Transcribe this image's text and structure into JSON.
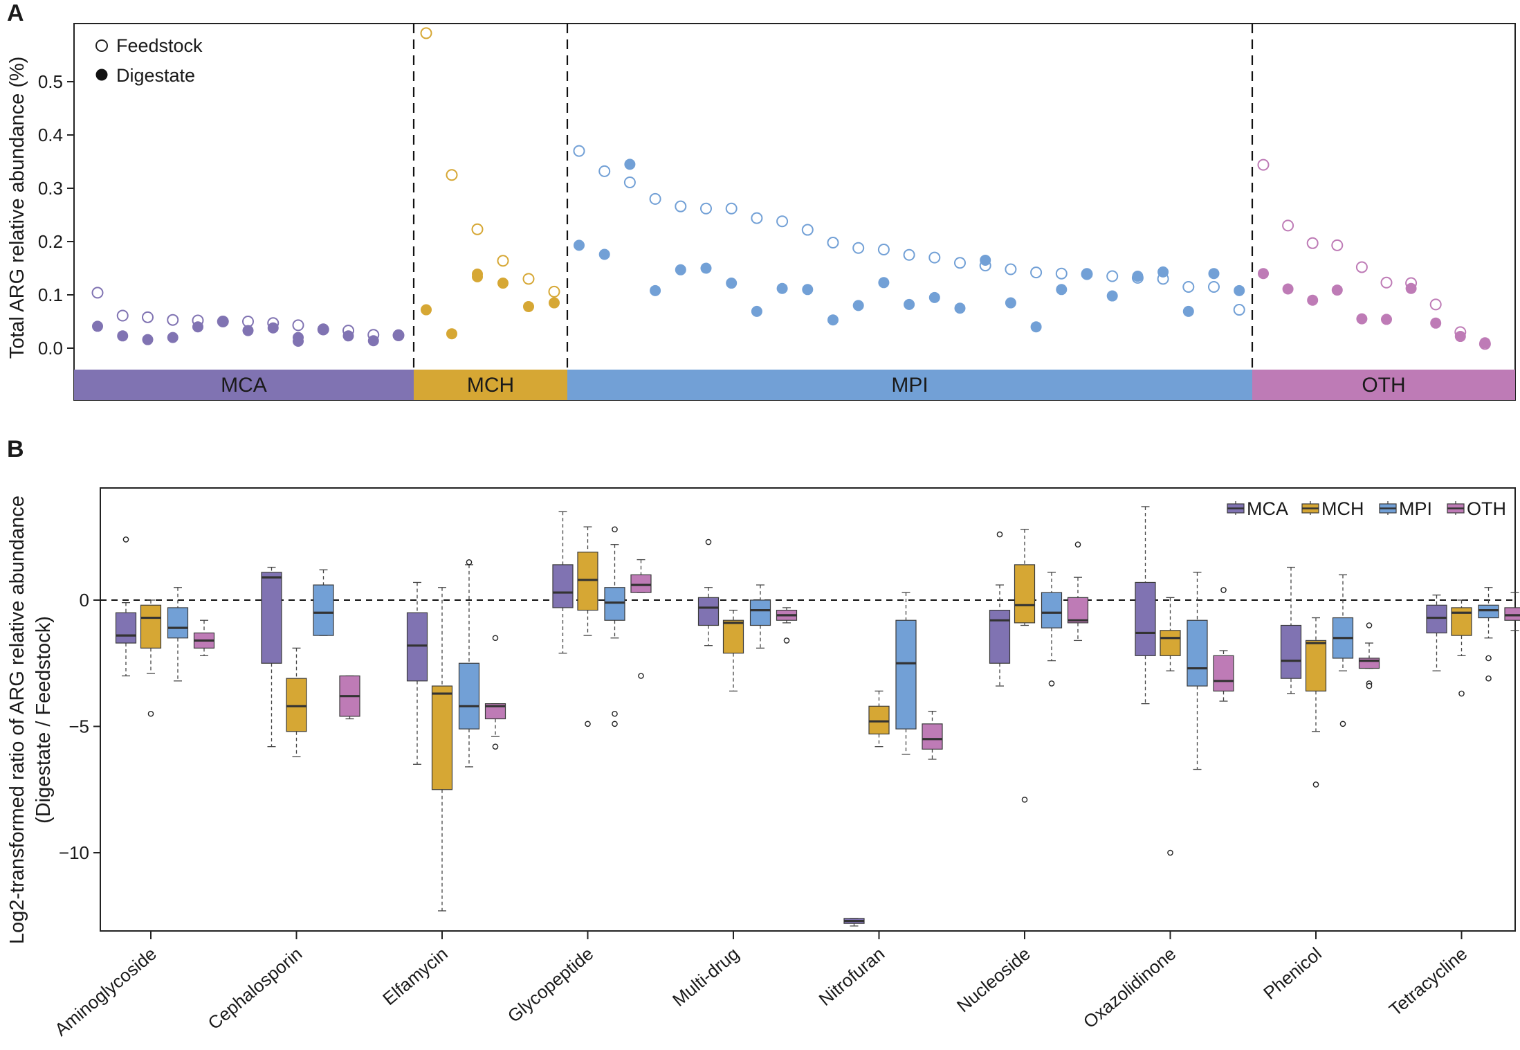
{
  "colors": {
    "MCA": "#8073b2",
    "MCH": "#d6a734",
    "MPI": "#72a0d6",
    "OTH": "#be7bb6",
    "median": "#333333",
    "axis": "#222222"
  },
  "chart_data": [
    {
      "panel": "A",
      "type": "scatter",
      "ylabel": "Total ARG relative abundance (%)",
      "ylim": [
        -0.04,
        0.6
      ],
      "yticks": [
        0.0,
        0.1,
        0.2,
        0.3,
        0.4,
        0.5
      ],
      "ytick_labels": [
        "0.0",
        "0.1",
        "0.2",
        "0.3",
        "0.4",
        "0.5"
      ],
      "legend": {
        "feedstock": "Feedstock",
        "digestate": "Digestate",
        "position": "top-left"
      },
      "groups": [
        {
          "name": "MCA",
          "label": "MCA",
          "feedstock": [
            0.104,
            0.061,
            0.058,
            0.053,
            0.052,
            0.05,
            0.05,
            0.047,
            0.043,
            0.035,
            0.033,
            0.025,
            0.024
          ],
          "digestate": [
            0.041,
            0.023,
            0.016,
            0.02,
            0.04,
            0.05,
            0.033,
            0.038,
            0.013,
            0.036,
            0.023,
            0.014,
            0.025
          ],
          "digestate_extra": [
            {
              "index": 8,
              "value": 0.02
            }
          ]
        },
        {
          "name": "MCH",
          "label": "MCH",
          "feedstock": [
            0.591,
            0.325,
            0.223,
            0.164,
            0.13,
            0.106
          ],
          "digestate": [
            0.072,
            0.027,
            0.139,
            0.122,
            0.078,
            0.085
          ],
          "digestate_extra": [
            {
              "index": 2,
              "value": 0.134
            }
          ]
        },
        {
          "name": "MPI",
          "label": "MPI",
          "feedstock": [
            0.37,
            0.332,
            0.311,
            0.28,
            0.266,
            0.262,
            0.262,
            0.244,
            0.238,
            0.222,
            0.198,
            0.188,
            0.185,
            0.175,
            0.17,
            0.16,
            0.155,
            0.148,
            0.142,
            0.14,
            0.139,
            0.135,
            0.132,
            0.13,
            0.115,
            0.115,
            0.072
          ],
          "digestate": [
            0.193,
            0.176,
            0.108,
            0.147,
            0.15,
            0.122,
            0.069,
            0.112,
            0.11,
            0.053,
            0.08,
            0.123,
            0.082,
            0.095,
            0.075,
            0.165,
            0.085,
            0.04,
            0.11,
            0.14,
            0.098,
            0.135,
            0.143,
            0.069,
            0.14,
            0.108
          ],
          "digestate_positions": [
            0,
            1,
            3,
            4,
            5,
            6,
            7,
            8,
            9,
            10,
            11,
            12,
            13,
            14,
            15,
            16,
            17,
            18,
            19,
            20,
            21,
            22,
            23,
            24,
            25,
            26
          ],
          "digestate_extra": [
            {
              "index": 2,
              "value": 0.345
            }
          ]
        },
        {
          "name": "OTH",
          "label": "OTH",
          "feedstock": [
            0.344,
            0.23,
            0.197,
            0.193,
            0.152,
            0.123,
            0.122,
            0.082,
            0.03,
            0.008
          ],
          "digestate": [
            0.14,
            0.111,
            0.09,
            0.109,
            0.055,
            0.054,
            0.112,
            0.047,
            0.022,
            0.01
          ]
        }
      ]
    },
    {
      "panel": "B",
      "type": "box",
      "ylabel_line1": "Log2-transformed ratio of ARG relative abundance",
      "ylabel_line2": "(Digestate / Feedstock)",
      "ylim": [
        -13,
        4.5
      ],
      "yticks": [
        0,
        -5,
        -10
      ],
      "ytick_labels": [
        "0",
        "−5",
        "−10"
      ],
      "reference_line": 0,
      "series": [
        "MCA",
        "MCH",
        "MPI",
        "OTH"
      ],
      "legend_position": "top-right",
      "categories": [
        "Aminoglycoside",
        "Cephalosporin",
        "Elfamycin",
        "Glycopeptide",
        "Multi-drug",
        "Nitrofuran",
        "Nucleoside",
        "Oxazolidinone",
        "Phenicol",
        "Tetracycline"
      ],
      "boxes": [
        [
          {
            "series": "MCA",
            "wl": -3.0,
            "q1": -1.7,
            "med": -1.4,
            "q3": -0.5,
            "wh": -0.1,
            "out": [
              2.4
            ]
          },
          {
            "series": "MCH",
            "wl": -2.9,
            "q1": -1.9,
            "med": -0.7,
            "q3": -0.2,
            "wh": 0.0,
            "out": [
              -4.5
            ]
          },
          {
            "series": "MPI",
            "wl": -3.2,
            "q1": -1.5,
            "med": -1.1,
            "q3": -0.3,
            "wh": 0.5,
            "out": []
          },
          {
            "series": "OTH",
            "wl": -2.2,
            "q1": -1.9,
            "med": -1.6,
            "q3": -1.3,
            "wh": -0.8,
            "out": []
          }
        ],
        [
          {
            "series": "MCA",
            "wl": -5.8,
            "q1": -2.5,
            "med": 0.9,
            "q3": 1.1,
            "wh": 1.3,
            "out": []
          },
          {
            "series": "MCH",
            "wl": -6.2,
            "q1": -5.2,
            "med": -4.2,
            "q3": -3.1,
            "wh": -1.9,
            "out": []
          },
          {
            "series": "MPI",
            "wl": -1.4,
            "q1": -1.4,
            "med": -0.5,
            "q3": 0.6,
            "wh": 1.2,
            "out": []
          },
          {
            "series": "OTH",
            "wl": -4.7,
            "q1": -4.6,
            "med": -3.8,
            "q3": -3.0,
            "wh": -3.0,
            "out": []
          }
        ],
        [
          {
            "series": "MCA",
            "wl": -6.5,
            "q1": -3.2,
            "med": -1.8,
            "q3": -0.5,
            "wh": 0.7,
            "out": []
          },
          {
            "series": "MCH",
            "wl": -12.3,
            "q1": -7.5,
            "med": -3.7,
            "q3": -3.4,
            "wh": 0.5,
            "out": []
          },
          {
            "series": "MPI",
            "wl": -6.6,
            "q1": -5.1,
            "med": -4.2,
            "q3": -2.5,
            "wh": 1.4,
            "out": [
              1.5
            ]
          },
          {
            "series": "OTH",
            "wl": -5.4,
            "q1": -4.7,
            "med": -4.2,
            "q3": -4.1,
            "wh": -4.1,
            "out": [
              -1.5,
              -5.8
            ]
          }
        ],
        [
          {
            "series": "MCA",
            "wl": -2.1,
            "q1": -0.3,
            "med": 0.3,
            "q3": 1.4,
            "wh": 3.5,
            "out": []
          },
          {
            "series": "MCH",
            "wl": -1.4,
            "q1": -0.4,
            "med": 0.8,
            "q3": 1.9,
            "wh": 2.9,
            "out": [
              -4.9
            ]
          },
          {
            "series": "MPI",
            "wl": -1.5,
            "q1": -0.8,
            "med": -0.1,
            "q3": 0.5,
            "wh": 2.2,
            "out": [
              2.8,
              -4.5,
              -4.9
            ]
          },
          {
            "series": "OTH",
            "wl": 0.3,
            "q1": 0.3,
            "med": 0.6,
            "q3": 1.0,
            "wh": 1.6,
            "out": [
              -3.0
            ]
          }
        ],
        [
          {
            "series": "MCA",
            "wl": -1.8,
            "q1": -1.0,
            "med": -0.3,
            "q3": 0.1,
            "wh": 0.5,
            "out": [
              2.3
            ]
          },
          {
            "series": "MCH",
            "wl": -3.6,
            "q1": -2.1,
            "med": -0.9,
            "q3": -0.8,
            "wh": -0.4,
            "out": []
          },
          {
            "series": "MPI",
            "wl": -1.9,
            "q1": -1.0,
            "med": -0.4,
            "q3": 0.0,
            "wh": 0.6,
            "out": []
          },
          {
            "series": "OTH",
            "wl": -0.9,
            "q1": -0.8,
            "med": -0.6,
            "q3": -0.4,
            "wh": -0.3,
            "out": [
              -1.6
            ]
          }
        ],
        [
          {
            "series": "MCA",
            "wl": -12.9,
            "q1": -12.8,
            "med": -12.7,
            "q3": -12.6,
            "wh": -12.6,
            "out": []
          },
          {
            "series": "MCH",
            "wl": -5.8,
            "q1": -5.3,
            "med": -4.8,
            "q3": -4.2,
            "wh": -3.6,
            "out": []
          },
          {
            "series": "MPI",
            "wl": -6.1,
            "q1": -5.1,
            "med": -2.5,
            "q3": -0.8,
            "wh": 0.3,
            "out": []
          },
          {
            "series": "OTH",
            "wl": -6.3,
            "q1": -5.9,
            "med": -5.5,
            "q3": -4.9,
            "wh": -4.4,
            "out": []
          }
        ],
        [
          {
            "series": "MCA",
            "wl": -3.4,
            "q1": -2.5,
            "med": -0.8,
            "q3": -0.4,
            "wh": 0.6,
            "out": [
              2.6
            ]
          },
          {
            "series": "MCH",
            "wl": -1.0,
            "q1": -0.9,
            "med": -0.2,
            "q3": 1.4,
            "wh": 2.8,
            "out": [
              -7.9
            ]
          },
          {
            "series": "MPI",
            "wl": -2.4,
            "q1": -1.1,
            "med": -0.5,
            "q3": 0.3,
            "wh": 1.1,
            "out": [
              -3.3
            ]
          },
          {
            "series": "OTH",
            "wl": -1.6,
            "q1": -0.9,
            "med": -0.8,
            "q3": 0.1,
            "wh": 0.9,
            "out": [
              2.2
            ]
          }
        ],
        [
          {
            "series": "MCA",
            "wl": -4.1,
            "q1": -2.2,
            "med": -1.3,
            "q3": 0.7,
            "wh": 3.7,
            "out": []
          },
          {
            "series": "MCH",
            "wl": -2.8,
            "q1": -2.2,
            "med": -1.5,
            "q3": -1.2,
            "wh": 0.1,
            "out": [
              -10.0
            ]
          },
          {
            "series": "MPI",
            "wl": -6.7,
            "q1": -3.4,
            "med": -2.7,
            "q3": -0.8,
            "wh": 1.1,
            "out": []
          },
          {
            "series": "OTH",
            "wl": -4.0,
            "q1": -3.6,
            "med": -3.2,
            "q3": -2.2,
            "wh": -2.0,
            "out": [
              0.4
            ]
          }
        ],
        [
          {
            "series": "MCA",
            "wl": -3.7,
            "q1": -3.1,
            "med": -2.4,
            "q3": -1.0,
            "wh": 1.3,
            "out": []
          },
          {
            "series": "MCH",
            "wl": -5.2,
            "q1": -3.6,
            "med": -1.7,
            "q3": -1.6,
            "wh": -0.7,
            "out": [
              -7.3
            ]
          },
          {
            "series": "MPI",
            "wl": -2.8,
            "q1": -2.3,
            "med": -1.5,
            "q3": -0.7,
            "wh": 1.0,
            "out": [
              -4.9
            ]
          },
          {
            "series": "OTH",
            "wl": -2.7,
            "q1": -2.7,
            "med": -2.4,
            "q3": -2.3,
            "wh": -1.7,
            "out": [
              -3.3,
              -3.4,
              -1.0
            ]
          }
        ],
        [
          {
            "series": "MCA",
            "wl": -2.8,
            "q1": -1.3,
            "med": -0.7,
            "q3": -0.2,
            "wh": 0.2,
            "out": []
          },
          {
            "series": "MCH",
            "wl": -2.2,
            "q1": -1.4,
            "med": -0.5,
            "q3": -0.3,
            "wh": 0.0,
            "out": [
              -3.7
            ]
          },
          {
            "series": "MPI",
            "wl": -1.5,
            "q1": -0.7,
            "med": -0.4,
            "q3": -0.2,
            "wh": 0.5,
            "out": [
              -2.3,
              -3.1
            ]
          },
          {
            "series": "OTH",
            "wl": -1.2,
            "q1": -0.8,
            "med": -0.6,
            "q3": -0.3,
            "wh": 0.3,
            "out": []
          }
        ]
      ]
    }
  ]
}
